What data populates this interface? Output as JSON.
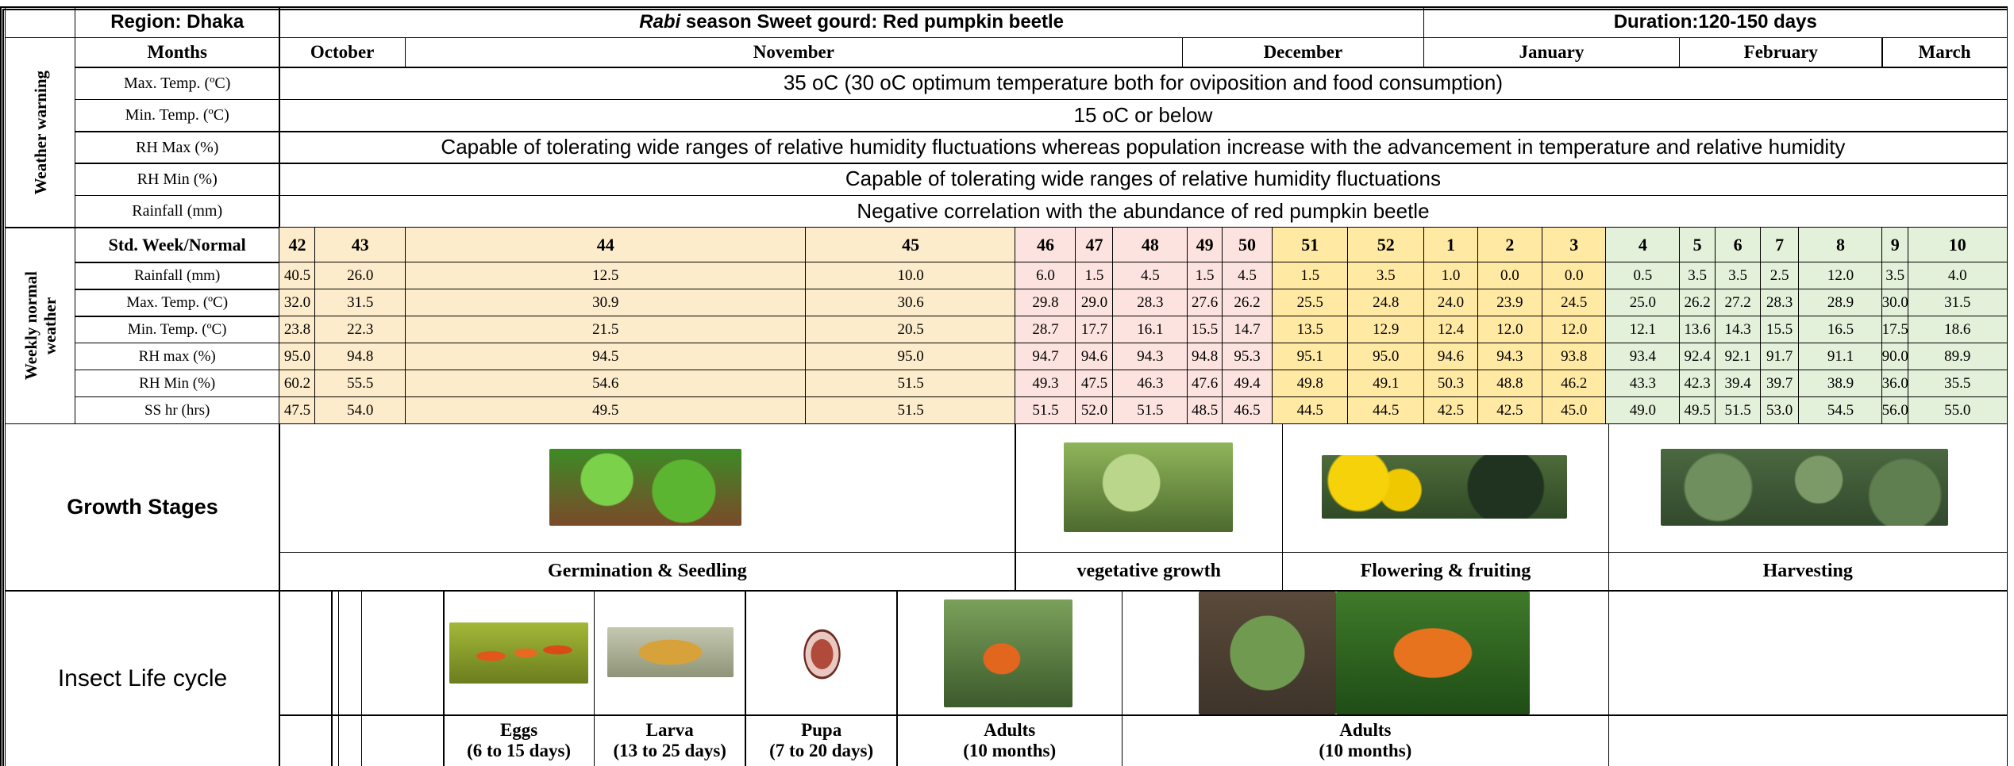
{
  "header": {
    "region": "Region: Dhaka",
    "title_italic": "Rabi",
    "title_rest": " season Sweet gourd: Red pumpkin beetle",
    "duration": "Duration:120-150 days"
  },
  "weather_warning": {
    "section_label": "Weather warning",
    "months_label": "Months",
    "months": [
      "October",
      "November",
      "December",
      "January",
      "February",
      "March"
    ],
    "rows": [
      {
        "label": "Max. Temp. (ºC)",
        "text": "35 oC (30 oC optimum temperature both for oviposition and food consumption)"
      },
      {
        "label": "Min. Temp. (ºC)",
        "text": "15 oC or below"
      },
      {
        "label": "RH Max (%)",
        "text": "Capable of tolerating wide ranges of relative humidity fluctuations whereas population increase with the advancement in temperature and relative humidity"
      },
      {
        "label": "RH Min (%)",
        "text": "Capable of tolerating wide ranges of relative humidity fluctuations"
      },
      {
        "label": "Rainfall (mm)",
        "text": "Negative correlation with the abundance of red pumpkin beetle"
      }
    ]
  },
  "weekly_weather": {
    "section_label": "Weekly normal weather",
    "weeks_label": "Std. Week/Normal",
    "weeks": [
      "42",
      "43",
      "44",
      "45",
      "46",
      "47",
      "48",
      "49",
      "50",
      "51",
      "52",
      "1",
      "2",
      "3",
      "4",
      "5",
      "6",
      "7",
      "8",
      "9",
      "10"
    ],
    "rows": [
      {
        "label": "Rainfall (mm)",
        "values": [
          "40.5",
          "26.0",
          "12.5",
          "10.0",
          "6.0",
          "1.5",
          "4.5",
          "1.5",
          "4.5",
          "1.5",
          "3.5",
          "1.0",
          "0.0",
          "0.0",
          "0.5",
          "3.5",
          "3.5",
          "2.5",
          "12.0",
          "3.5",
          "4.0"
        ]
      },
      {
        "label": "Max. Temp. (ºC)",
        "values": [
          "32.0",
          "31.5",
          "30.9",
          "30.6",
          "29.8",
          "29.0",
          "28.3",
          "27.6",
          "26.2",
          "25.5",
          "24.8",
          "24.0",
          "23.9",
          "24.5",
          "25.0",
          "26.2",
          "27.2",
          "28.3",
          "28.9",
          "30.0",
          "31.5"
        ]
      },
      {
        "label": "Min. Temp. (ºC)",
        "values": [
          "23.8",
          "22.3",
          "21.5",
          "20.5",
          "28.7",
          "17.7",
          "16.1",
          "15.5",
          "14.7",
          "13.5",
          "12.9",
          "12.4",
          "12.0",
          "12.0",
          "12.1",
          "13.6",
          "14.3",
          "15.5",
          "16.5",
          "17.5",
          "18.6"
        ]
      },
      {
        "label": "RH max (%)",
        "values": [
          "95.0",
          "94.8",
          "94.5",
          "95.0",
          "94.7",
          "94.6",
          "94.3",
          "94.8",
          "95.3",
          "95.1",
          "95.0",
          "94.6",
          "94.3",
          "93.8",
          "93.4",
          "92.4",
          "92.1",
          "91.7",
          "91.1",
          "90.0",
          "89.9"
        ]
      },
      {
        "label": "RH Min (%)",
        "values": [
          "60.2",
          "55.5",
          "54.6",
          "51.5",
          "49.3",
          "47.5",
          "46.3",
          "47.6",
          "49.4",
          "49.8",
          "49.1",
          "50.3",
          "48.8",
          "46.2",
          "43.3",
          "42.3",
          "39.4",
          "39.7",
          "38.9",
          "36.0",
          "35.5"
        ]
      },
      {
        "label": "SS hr (hrs)",
        "values": [
          "47.5",
          "54.0",
          "49.5",
          "51.5",
          "51.5",
          "52.0",
          "51.5",
          "48.5",
          "46.5",
          "44.5",
          "44.5",
          "42.5",
          "42.5",
          "45.0",
          "49.0",
          "49.5",
          "51.5",
          "53.0",
          "54.5",
          "56.0",
          "55.0"
        ]
      }
    ]
  },
  "growth_stages": {
    "label": "Growth Stages",
    "stages": [
      "Germination & Seedling",
      "vegetative growth",
      "Flowering & fruiting",
      "Harvesting"
    ]
  },
  "insect_life_cycle": {
    "label": "Insect Life cycle",
    "stages": [
      {
        "name": "Eggs",
        "duration": "(6 to 15 days)"
      },
      {
        "name": "Larva",
        "duration": "(13 to 25 days)"
      },
      {
        "name": "Pupa",
        "duration": "(7 to 20 days)"
      },
      {
        "name": "Adults",
        "duration": "(10 months)"
      },
      {
        "name": "Adults",
        "duration": "(10 months)"
      }
    ]
  }
}
